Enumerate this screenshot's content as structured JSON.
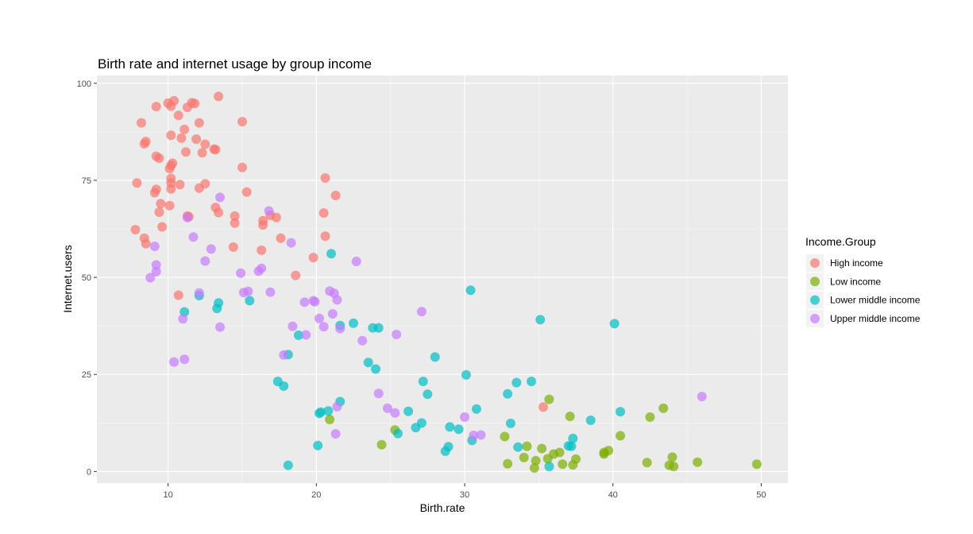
{
  "chart_data": {
    "type": "scatter",
    "title": "Birth rate and internet usage by group income",
    "xlabel": "Birth.rate",
    "ylabel": "Internet.users",
    "xlim": [
      5.2,
      51.8
    ],
    "ylim": [
      -3,
      102
    ],
    "x_ticks": [
      10,
      20,
      30,
      40,
      50
    ],
    "y_ticks": [
      0,
      25,
      50,
      75,
      100
    ],
    "x_tick_labels": [
      "10",
      "20",
      "30",
      "40",
      "50"
    ],
    "y_tick_labels": [
      "0",
      "25",
      "50",
      "75",
      "100"
    ],
    "grid": true,
    "legend": {
      "title": "Income.Group",
      "placement": "right"
    },
    "series": [
      {
        "name": "High income",
        "color": "#F8766D",
        "points": [
          [
            11.6,
            95.0
          ],
          [
            10.4,
            95.5
          ],
          [
            13.4,
            96.6
          ],
          [
            9.2,
            94.0
          ],
          [
            10.0,
            94.9
          ],
          [
            10.2,
            94.1
          ],
          [
            11.3,
            93.8
          ],
          [
            11.8,
            94.8
          ],
          [
            8.2,
            89.8
          ],
          [
            12.1,
            89.8
          ],
          [
            15.0,
            90.1
          ],
          [
            10.7,
            91.7
          ],
          [
            11.1,
            88.1
          ],
          [
            10.2,
            86.6
          ],
          [
            10.9,
            85.9
          ],
          [
            11.9,
            85.6
          ],
          [
            8.4,
            84.4
          ],
          [
            8.5,
            85.0
          ],
          [
            12.5,
            84.3
          ],
          [
            13.2,
            82.9
          ],
          [
            13.1,
            83.0
          ],
          [
            11.2,
            82.3
          ],
          [
            12.3,
            82.1
          ],
          [
            9.2,
            81.2
          ],
          [
            9.4,
            80.7
          ],
          [
            10.3,
            79.4
          ],
          [
            10.2,
            78.8
          ],
          [
            10.1,
            78.0
          ],
          [
            15.0,
            78.3
          ],
          [
            20.6,
            75.6
          ],
          [
            10.2,
            75.5
          ],
          [
            7.9,
            74.3
          ],
          [
            10.2,
            74.3
          ],
          [
            10.8,
            73.9
          ],
          [
            12.5,
            74.1
          ],
          [
            9.2,
            72.7
          ],
          [
            10.2,
            72.8
          ],
          [
            12.1,
            73.0
          ],
          [
            9.1,
            71.8
          ],
          [
            15.3,
            72.0
          ],
          [
            21.3,
            71.1
          ],
          [
            9.5,
            69.0
          ],
          [
            10.1,
            68.5
          ],
          [
            13.2,
            68.0
          ],
          [
            9.4,
            66.8
          ],
          [
            13.4,
            66.7
          ],
          [
            20.5,
            66.6
          ],
          [
            11.3,
            65.8
          ],
          [
            11.4,
            65.6
          ],
          [
            14.5,
            65.8
          ],
          [
            16.9,
            66.0
          ],
          [
            17.3,
            65.4
          ],
          [
            16.4,
            64.6
          ],
          [
            14.5,
            64.0
          ],
          [
            16.4,
            63.5
          ],
          [
            9.6,
            63.0
          ],
          [
            7.8,
            62.3
          ],
          [
            8.4,
            60.1
          ],
          [
            17.6,
            60.1
          ],
          [
            20.6,
            60.6
          ],
          [
            8.5,
            58.7
          ],
          [
            14.4,
            57.8
          ],
          [
            16.3,
            57.0
          ],
          [
            19.8,
            55.1
          ],
          [
            18.6,
            50.5
          ],
          [
            10.7,
            45.4
          ],
          [
            35.3,
            16.6
          ]
        ]
      },
      {
        "name": "Low income",
        "color": "#7CAE00",
        "points": [
          [
            35.7,
            18.6
          ],
          [
            43.4,
            16.3
          ],
          [
            37.1,
            14.2
          ],
          [
            42.5,
            14.0
          ],
          [
            20.9,
            13.4
          ],
          [
            25.3,
            10.7
          ],
          [
            32.7,
            9.0
          ],
          [
            40.5,
            9.2
          ],
          [
            24.4,
            6.9
          ],
          [
            34.2,
            6.5
          ],
          [
            35.2,
            5.9
          ],
          [
            36.4,
            4.9
          ],
          [
            39.4,
            4.9
          ],
          [
            39.7,
            5.4
          ],
          [
            36.0,
            4.5
          ],
          [
            39.4,
            4.5
          ],
          [
            34.0,
            3.6
          ],
          [
            35.6,
            3.3
          ],
          [
            44.0,
            3.7
          ],
          [
            37.5,
            3.2
          ],
          [
            32.9,
            2.0
          ],
          [
            34.8,
            2.8
          ],
          [
            36.6,
            1.9
          ],
          [
            37.3,
            1.7
          ],
          [
            42.3,
            2.3
          ],
          [
            45.7,
            2.4
          ],
          [
            49.7,
            1.9
          ],
          [
            43.8,
            1.6
          ],
          [
            44.1,
            1.3
          ],
          [
            34.7,
            0.9
          ]
        ]
      },
      {
        "name": "Lower middle income",
        "color": "#00BFC4",
        "points": [
          [
            30.4,
            46.7
          ],
          [
            21.0,
            56.1
          ],
          [
            12.1,
            45.3
          ],
          [
            13.4,
            43.4
          ],
          [
            15.5,
            44.0
          ],
          [
            11.1,
            41.1
          ],
          [
            13.3,
            42.0
          ],
          [
            35.1,
            39.1
          ],
          [
            40.1,
            38.1
          ],
          [
            22.5,
            38.2
          ],
          [
            21.6,
            37.6
          ],
          [
            23.8,
            37.0
          ],
          [
            24.2,
            37.0
          ],
          [
            18.8,
            35.1
          ],
          [
            18.1,
            30.1
          ],
          [
            28.0,
            29.5
          ],
          [
            23.5,
            28.1
          ],
          [
            24.0,
            26.4
          ],
          [
            30.1,
            24.9
          ],
          [
            17.4,
            23.2
          ],
          [
            27.2,
            23.2
          ],
          [
            33.5,
            22.9
          ],
          [
            34.5,
            23.2
          ],
          [
            17.8,
            22.0
          ],
          [
            27.5,
            19.9
          ],
          [
            32.9,
            20.0
          ],
          [
            21.6,
            18.0
          ],
          [
            30.8,
            16.1
          ],
          [
            40.5,
            15.4
          ],
          [
            20.8,
            15.6
          ],
          [
            26.2,
            15.5
          ],
          [
            20.2,
            15.0
          ],
          [
            20.3,
            15.3
          ],
          [
            38.5,
            13.2
          ],
          [
            27.1,
            12.5
          ],
          [
            33.1,
            12.4
          ],
          [
            26.7,
            11.3
          ],
          [
            29.0,
            11.5
          ],
          [
            29.6,
            10.9
          ],
          [
            25.5,
            9.8
          ],
          [
            37.3,
            8.5
          ],
          [
            30.5,
            8.0
          ],
          [
            37.0,
            6.6
          ],
          [
            33.6,
            6.3
          ],
          [
            37.2,
            6.5
          ],
          [
            20.1,
            6.7
          ],
          [
            28.9,
            6.4
          ],
          [
            28.7,
            5.2
          ],
          [
            18.1,
            1.6
          ],
          [
            35.7,
            1.3
          ]
        ]
      },
      {
        "name": "Upper middle income",
        "color": "#C77CFF",
        "points": [
          [
            13.5,
            70.6
          ],
          [
            16.8,
            67.1
          ],
          [
            11.3,
            65.4
          ],
          [
            11.7,
            60.4
          ],
          [
            9.1,
            58.0
          ],
          [
            18.3,
            58.9
          ],
          [
            12.9,
            57.3
          ],
          [
            12.5,
            54.2
          ],
          [
            22.7,
            54.1
          ],
          [
            9.2,
            53.2
          ],
          [
            16.3,
            52.3
          ],
          [
            9.2,
            51.5
          ],
          [
            16.1,
            51.6
          ],
          [
            14.9,
            51.1
          ],
          [
            8.8,
            49.9
          ],
          [
            15.1,
            46.1
          ],
          [
            15.4,
            46.4
          ],
          [
            16.9,
            46.2
          ],
          [
            12.1,
            46.0
          ],
          [
            20.9,
            46.5
          ],
          [
            21.2,
            45.9
          ],
          [
            21.4,
            44.2
          ],
          [
            19.2,
            43.6
          ],
          [
            19.8,
            44.0
          ],
          [
            19.9,
            43.7
          ],
          [
            21.1,
            40.6
          ],
          [
            27.1,
            41.2
          ],
          [
            11.0,
            39.3
          ],
          [
            20.2,
            39.4
          ],
          [
            13.5,
            37.2
          ],
          [
            18.4,
            37.4
          ],
          [
            20.5,
            37.3
          ],
          [
            21.6,
            36.8
          ],
          [
            25.4,
            35.3
          ],
          [
            19.3,
            35.2
          ],
          [
            23.1,
            33.7
          ],
          [
            17.8,
            30.0
          ],
          [
            11.1,
            28.9
          ],
          [
            10.4,
            28.2
          ],
          [
            24.2,
            20.1
          ],
          [
            46.0,
            19.3
          ],
          [
            24.8,
            16.3
          ],
          [
            21.4,
            16.7
          ],
          [
            25.3,
            15.1
          ],
          [
            30.0,
            14.0
          ],
          [
            21.3,
            9.7
          ],
          [
            30.6,
            9.3
          ],
          [
            31.1,
            9.4
          ]
        ]
      }
    ]
  }
}
